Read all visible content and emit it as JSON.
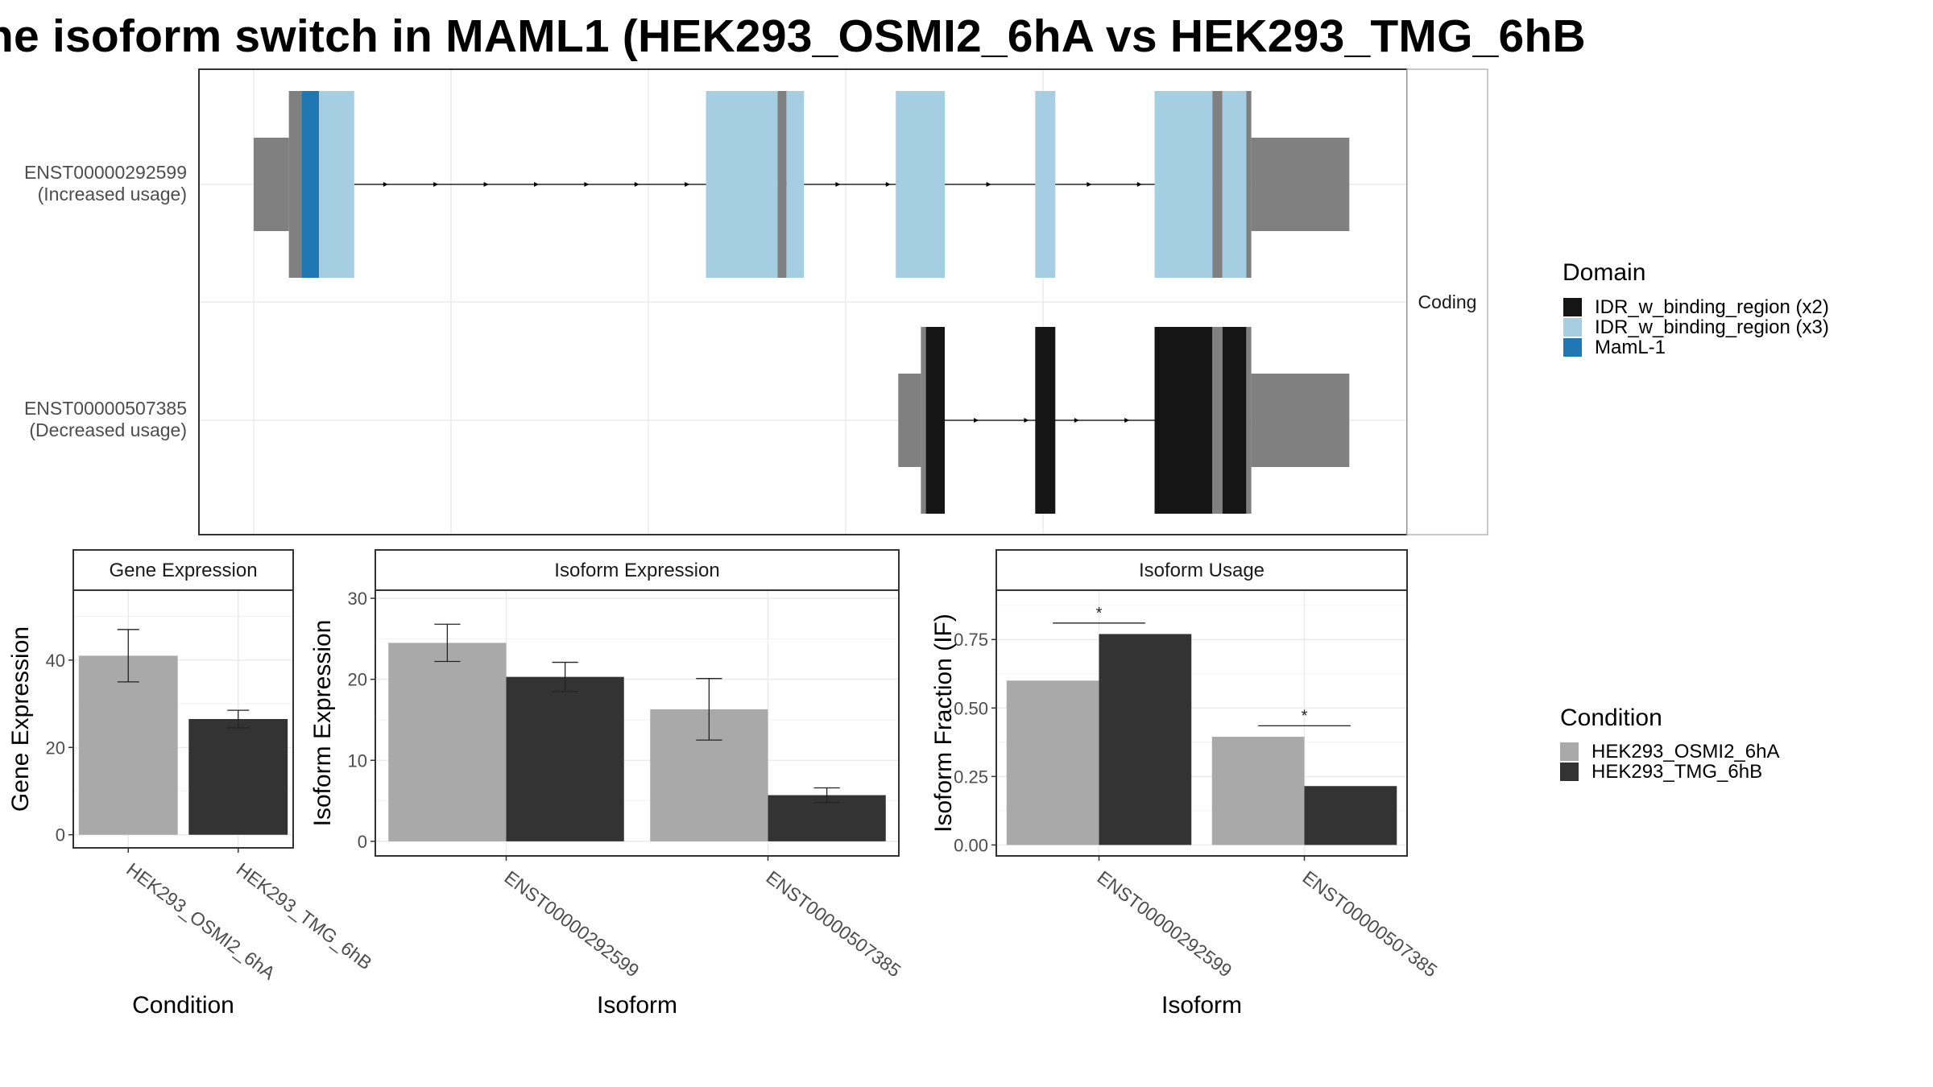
{
  "title": "he isoform switch in MAML1 (HEK293_OSMI2_6hA vs HEK293_TMG_6hB",
  "colors": {
    "utr": "#808080",
    "idr_x2": "#151515",
    "idr_x3": "#a6cee3",
    "maml": "#1f78b4",
    "cond_a": "#a9a9a9",
    "cond_b": "#333333"
  },
  "structure": {
    "strip_label": "Coding",
    "isoforms": [
      {
        "id": "ENST00000292599",
        "usage": "(Increased usage)",
        "segments": [
          {
            "type": "utr",
            "start": 0,
            "end": 28
          },
          {
            "type": "utr_cds",
            "start": 28,
            "end": 38
          },
          {
            "type": "maml",
            "start": 38,
            "end": 52
          },
          {
            "type": "idr_x3",
            "start": 52,
            "end": 80
          },
          {
            "type": "idr_x3",
            "start": 360,
            "end": 417
          },
          {
            "type": "cds",
            "start": 417,
            "end": 424
          },
          {
            "type": "idr_x3",
            "start": 424,
            "end": 438
          },
          {
            "type": "idr_x3",
            "start": 511,
            "end": 550
          },
          {
            "type": "idr_x3",
            "start": 622,
            "end": 638
          },
          {
            "type": "idr_x3",
            "start": 717,
            "end": 763
          },
          {
            "type": "cds",
            "start": 763,
            "end": 771
          },
          {
            "type": "idr_x3",
            "start": 771,
            "end": 790
          },
          {
            "type": "cds",
            "start": 790,
            "end": 794
          },
          {
            "type": "utr",
            "start": 794,
            "end": 872
          }
        ],
        "intron_range": [
          80,
          717
        ]
      },
      {
        "id": "ENST00000507385",
        "usage": "(Decreased usage)",
        "segments": [
          {
            "type": "utr",
            "start": 513,
            "end": 531
          },
          {
            "type": "cds",
            "start": 531,
            "end": 535
          },
          {
            "type": "idr_x2",
            "start": 535,
            "end": 550
          },
          {
            "type": "idr_x2",
            "start": 622,
            "end": 638
          },
          {
            "type": "idr_x2",
            "start": 717,
            "end": 763
          },
          {
            "type": "cds",
            "start": 763,
            "end": 771
          },
          {
            "type": "idr_x2",
            "start": 771,
            "end": 790
          },
          {
            "type": "cds",
            "start": 790,
            "end": 794
          },
          {
            "type": "utr",
            "start": 794,
            "end": 872
          }
        ],
        "intron_range": [
          550,
          717
        ]
      }
    ]
  },
  "legend_domain": {
    "title": "Domain",
    "items": [
      {
        "label": "IDR_w_binding_region (x2)",
        "color": "#151515"
      },
      {
        "label": "IDR_w_binding_region (x3)",
        "color": "#a6cee3"
      },
      {
        "label": "MamL-1",
        "color": "#1f78b4"
      }
    ]
  },
  "legend_condition": {
    "title": "Condition",
    "items": [
      {
        "label": "HEK293_OSMI2_6hA",
        "color": "#a9a9a9"
      },
      {
        "label": "HEK293_TMG_6hB",
        "color": "#333333"
      }
    ]
  },
  "chart_data": [
    {
      "type": "bar",
      "title": "Gene Expression",
      "xlabel": "Condition",
      "ylabel": "Gene Expression",
      "categories": [
        "HEK293_OSMI2_6hA",
        "HEK293_TMG_6hB"
      ],
      "values": [
        41,
        26.5
      ],
      "error_low": [
        35,
        24.5
      ],
      "error_high": [
        47,
        28.5
      ],
      "ylim": [
        -3,
        56
      ],
      "yticks": [
        0,
        20,
        40
      ]
    },
    {
      "type": "bar",
      "title": "Isoform Expression",
      "xlabel": "Isoform",
      "ylabel": "Isoform Expression",
      "categories": [
        "ENST00000292599",
        "ENST00000507385"
      ],
      "series": [
        {
          "name": "HEK293_OSMI2_6hA",
          "values": [
            24.5,
            16.3
          ],
          "error_low": [
            22.2,
            12.5
          ],
          "error_high": [
            26.8,
            20.1
          ]
        },
        {
          "name": "HEK293_TMG_6hB",
          "values": [
            20.3,
            5.7
          ],
          "error_low": [
            18.5,
            4.8
          ],
          "error_high": [
            22.1,
            6.6
          ]
        }
      ],
      "ylim": [
        -1.8,
        31
      ],
      "yticks": [
        0,
        10,
        20,
        30
      ]
    },
    {
      "type": "bar",
      "title": "Isoform Usage",
      "xlabel": "Isoform",
      "ylabel": "Isoform Fraction (IF)",
      "categories": [
        "ENST00000292599",
        "ENST00000507385"
      ],
      "series": [
        {
          "name": "HEK293_OSMI2_6hA",
          "values": [
            0.6,
            0.395
          ]
        },
        {
          "name": "HEK293_TMG_6hB",
          "values": [
            0.77,
            0.215
          ]
        }
      ],
      "significance": [
        {
          "label": "*",
          "y": 0.81
        },
        {
          "label": "*",
          "y": 0.435
        }
      ],
      "ylim": [
        -0.04,
        0.93
      ],
      "yticks": [
        0.0,
        0.25,
        0.5,
        0.75
      ],
      "ytick_labels": [
        "0.00",
        "0.25",
        "0.50",
        "0.75"
      ]
    }
  ]
}
